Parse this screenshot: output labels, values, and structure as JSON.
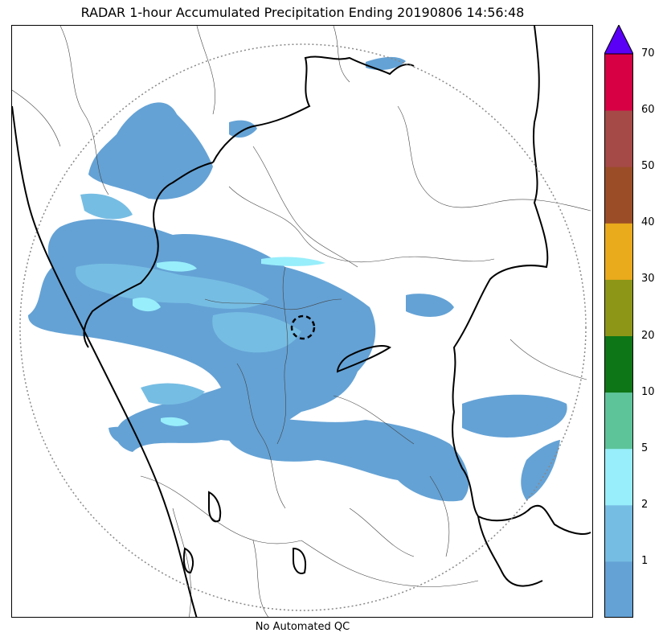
{
  "title": "RADAR 1-hour Accumulated Precipitation Ending 20190806 14:56:48",
  "footer": "No Automated QC",
  "legend": {
    "levels": [
      {
        "label": "",
        "color": "#64a2d5"
      },
      {
        "label": "1",
        "color": "#76bde3"
      },
      {
        "label": "2",
        "color": "#98eefb"
      },
      {
        "label": "5",
        "color": "#5dc49a"
      },
      {
        "label": "10",
        "color": "#0d7616"
      },
      {
        "label": "20",
        "color": "#8d9617"
      },
      {
        "label": "30",
        "color": "#e9aa1c"
      },
      {
        "label": "40",
        "color": "#9b4d28"
      },
      {
        "label": "50",
        "color": "#a54a46"
      },
      {
        "label": "60",
        "color": "#d70045"
      },
      {
        "label": "70",
        "color": "#5a00f6"
      }
    ],
    "extend_color": "#5a00f6"
  },
  "colors": {
    "precip_light": "#64a2d5",
    "precip_mid": "#76bde3",
    "precip_high": "#98eefb",
    "range_ring": "#888888",
    "boundary_major": "#000000",
    "boundary_minor": "#444444"
  }
}
